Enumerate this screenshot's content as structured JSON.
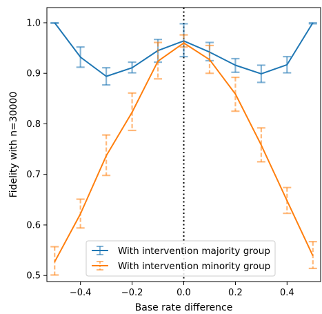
{
  "chart_data": {
    "type": "line",
    "xlabel": "Base rate difference",
    "ylabel": "Fidelity with n=30000",
    "xlim": [
      -0.53,
      0.53
    ],
    "ylim": [
      0.488,
      1.03
    ],
    "xticks": [
      -0.4,
      -0.2,
      0.0,
      0.2,
      0.4
    ],
    "yticks": [
      0.5,
      0.6,
      0.7,
      0.8,
      0.9,
      1.0
    ],
    "xtick_labels": [
      "−0.4",
      "−0.2",
      "0.0",
      "0.2",
      "0.4"
    ],
    "ytick_labels": [
      "0.5",
      "0.6",
      "0.7",
      "0.8",
      "0.9",
      "1.0"
    ],
    "vline_x": 0.0,
    "legend_position": "lower center",
    "x": [
      -0.5,
      -0.4,
      -0.3,
      -0.2,
      -0.1,
      0.0,
      0.1,
      0.2,
      0.3,
      0.4,
      0.5
    ],
    "series": [
      {
        "name": "With intervention majority group",
        "color": "#1f77b4",
        "errorbar_style": "solid",
        "values": [
          1.0,
          0.932,
          0.894,
          0.911,
          0.945,
          0.964,
          0.942,
          0.916,
          0.899,
          0.917,
          1.0
        ],
        "lower": [
          0.999,
          0.912,
          0.877,
          0.901,
          0.922,
          0.933,
          0.925,
          0.902,
          0.882,
          0.901,
          0.998
        ],
        "upper": [
          1.0,
          0.952,
          0.911,
          0.922,
          0.967,
          0.998,
          0.961,
          0.929,
          0.916,
          0.933,
          1.0
        ]
      },
      {
        "name": "With intervention minority group",
        "color": "#ff7f0e",
        "errorbar_style": "dashed",
        "values": [
          0.527,
          0.622,
          0.737,
          0.823,
          0.924,
          0.96,
          0.927,
          0.859,
          0.758,
          0.648,
          0.539
        ],
        "lower": [
          0.501,
          0.594,
          0.698,
          0.787,
          0.889,
          0.952,
          0.9,
          0.825,
          0.725,
          0.623,
          0.514
        ],
        "upper": [
          0.557,
          0.651,
          0.778,
          0.861,
          0.961,
          0.976,
          0.955,
          0.892,
          0.792,
          0.674,
          0.567
        ]
      }
    ]
  }
}
